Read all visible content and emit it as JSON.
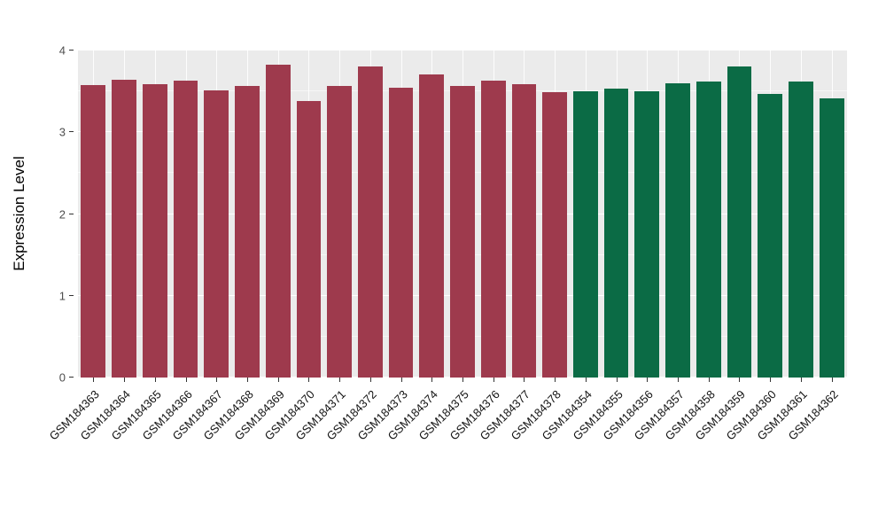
{
  "chart_data": {
    "type": "bar",
    "title": "",
    "xlabel": "",
    "ylabel": "Expression Level",
    "ylim": [
      0,
      4
    ],
    "yticks": [
      0,
      1,
      2,
      3,
      4
    ],
    "grid": "on",
    "legend": "none",
    "panel_background": "#EBEBEB",
    "gridline_color": "#FFFFFF",
    "categories": [
      "GSM184363",
      "GSM184364",
      "GSM184365",
      "GSM184366",
      "GSM184367",
      "GSM184368",
      "GSM184369",
      "GSM184370",
      "GSM184371",
      "GSM184372",
      "GSM184373",
      "GSM184374",
      "GSM184375",
      "GSM184376",
      "GSM184377",
      "GSM184378",
      "GSM184354",
      "GSM184355",
      "GSM184356",
      "GSM184357",
      "GSM184358",
      "GSM184359",
      "GSM184360",
      "GSM184361",
      "GSM184362"
    ],
    "values": [
      3.58,
      3.64,
      3.59,
      3.63,
      3.51,
      3.57,
      3.83,
      3.38,
      3.57,
      3.8,
      3.55,
      3.71,
      3.57,
      3.63,
      3.59,
      3.49,
      3.5,
      3.53,
      3.5,
      3.6,
      3.62,
      3.81,
      3.47,
      3.62,
      3.41
    ],
    "bar_groups": [
      "maroon",
      "maroon",
      "maroon",
      "maroon",
      "maroon",
      "maroon",
      "maroon",
      "maroon",
      "maroon",
      "maroon",
      "maroon",
      "maroon",
      "maroon",
      "maroon",
      "maroon",
      "maroon",
      "green",
      "green",
      "green",
      "green",
      "green",
      "green",
      "green",
      "green",
      "green"
    ],
    "group_colors": {
      "maroon": "#9E3A4D",
      "green": "#0B6B45"
    }
  }
}
